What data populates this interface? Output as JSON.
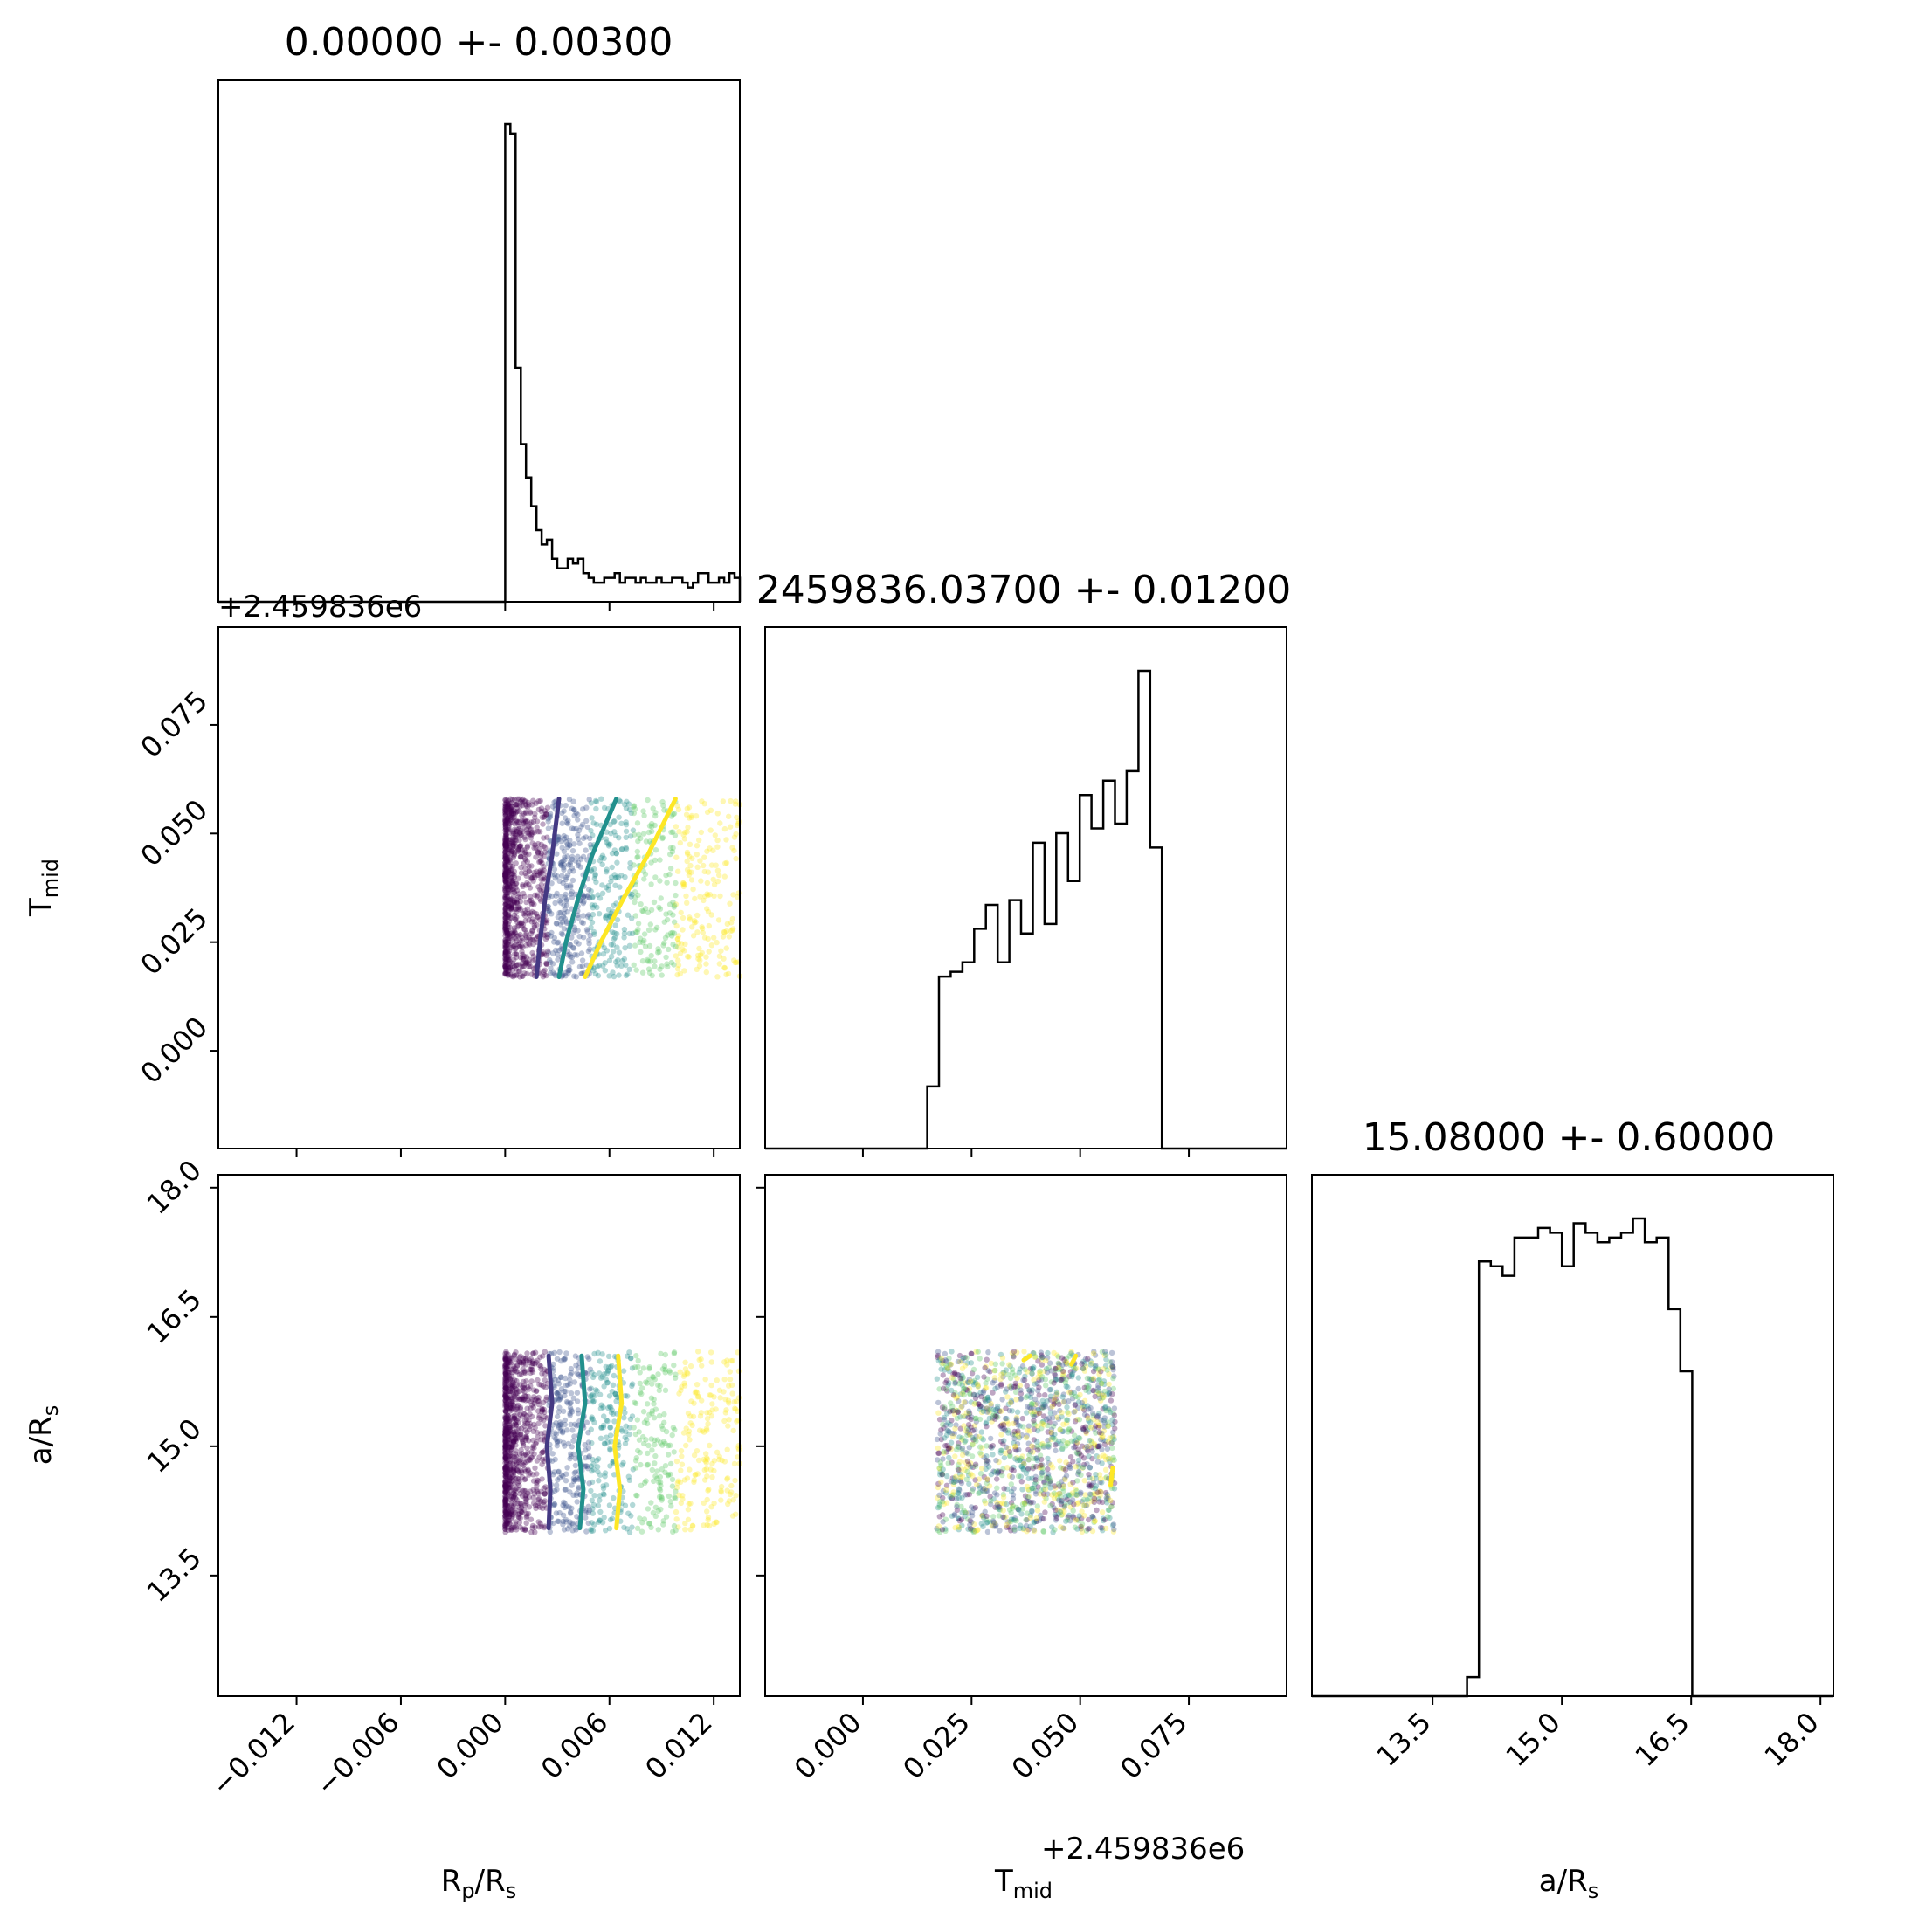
{
  "chart_data": {
    "type": "corner",
    "parameters": [
      {
        "id": "rp",
        "label": "R",
        "sub": "p",
        "label2": "/R",
        "sub2": "s",
        "range": [
          -0.0165,
          0.0135
        ],
        "ticks": [
          -0.012,
          -0.006,
          0.0,
          0.006,
          0.012
        ],
        "tick_labels": [
          "−0.012",
          "−0.006",
          "0.000",
          "0.006",
          "0.012"
        ]
      },
      {
        "id": "tmid",
        "label": "T",
        "sub": "mid",
        "label2": "",
        "sub2": "",
        "range": [
          -0.0225,
          0.0975
        ],
        "ticks": [
          0.0,
          0.025,
          0.05,
          0.075
        ],
        "tick_labels": [
          "0.000",
          "0.025",
          "0.050",
          "0.075"
        ],
        "offset_text": "+2.459836e6"
      },
      {
        "id": "ars",
        "label": "a/R",
        "sub": "s",
        "label2": "",
        "sub2": "",
        "range": [
          12.1,
          18.15
        ],
        "ticks": [
          13.5,
          15.0,
          16.5,
          18.0
        ],
        "tick_labels": [
          "13.5",
          "15.0",
          "16.5",
          "18.0"
        ]
      }
    ],
    "titles": [
      "0.00000 +- 0.00300",
      "2459836.03700 +- 0.01200",
      "15.08000 +- 0.60000"
    ],
    "top_offset_text": "+2.459836e6",
    "histograms": [
      {
        "bin_start": -0.0,
        "bin_width": 0.0003,
        "values": [
          1.0,
          0.98,
          0.49,
          0.33,
          0.26,
          0.2,
          0.15,
          0.12,
          0.13,
          0.09,
          0.07,
          0.07,
          0.09,
          0.08,
          0.09,
          0.06,
          0.05,
          0.04,
          0.04,
          0.05,
          0.05,
          0.06,
          0.04,
          0.05,
          0.05,
          0.04,
          0.05,
          0.04,
          0.04,
          0.05,
          0.04,
          0.04,
          0.05,
          0.05,
          0.04,
          0.03,
          0.04,
          0.06,
          0.06,
          0.04,
          0.04,
          0.05,
          0.04,
          0.06,
          0.05
        ]
      },
      {
        "bin_start": 0.0148,
        "bin_width": 0.0027,
        "values": [
          0.13,
          0.36,
          0.37,
          0.39,
          0.46,
          0.51,
          0.39,
          0.52,
          0.45,
          0.64,
          0.47,
          0.66,
          0.56,
          0.74,
          0.67,
          0.77,
          0.68,
          0.79,
          1.0,
          0.63
        ]
      },
      {
        "bin_start": 13.9,
        "bin_width": 0.1375,
        "values": [
          0.04,
          0.91,
          0.9,
          0.88,
          0.96,
          0.96,
          0.98,
          0.97,
          0.9,
          0.99,
          0.97,
          0.95,
          0.96,
          0.97,
          1.0,
          0.95,
          0.96,
          0.81,
          0.68
        ]
      }
    ],
    "scatter": [
      {
        "row": 1,
        "col": 0,
        "x_range": [
          0.0,
          0.0135
        ],
        "y_range": [
          0.017,
          0.058
        ],
        "density": "x_concentrated_low",
        "contours": [
          {
            "color": "#443983",
            "points": [
              [
                0.0018,
                0.017
              ],
              [
                0.002,
                0.025
              ],
              [
                0.0023,
                0.035
              ],
              [
                0.0027,
                0.045
              ],
              [
                0.0031,
                0.058
              ]
            ]
          },
          {
            "color": "#21908d",
            "points": [
              [
                0.0031,
                0.017
              ],
              [
                0.0035,
                0.025
              ],
              [
                0.0042,
                0.035
              ],
              [
                0.005,
                0.045
              ],
              [
                0.0064,
                0.058
              ]
            ]
          },
          {
            "color": "#fde725",
            "points": [
              [
                0.0046,
                0.017
              ],
              [
                0.0055,
                0.025
              ],
              [
                0.0068,
                0.035
              ],
              [
                0.0082,
                0.045
              ],
              [
                0.0098,
                0.058
              ]
            ]
          }
        ]
      },
      {
        "row": 2,
        "col": 0,
        "x_range": [
          0.0,
          0.0135
        ],
        "y_range": [
          14.0,
          16.1
        ],
        "density": "x_concentrated_low",
        "contours": [
          {
            "color": "#443983",
            "points": [
              [
                0.0025,
                14.05
              ],
              [
                0.0026,
                14.5
              ],
              [
                0.0024,
                15.0
              ],
              [
                0.0027,
                15.5
              ],
              [
                0.0025,
                16.05
              ]
            ]
          },
          {
            "color": "#21908d",
            "points": [
              [
                0.0043,
                14.05
              ],
              [
                0.0045,
                14.5
              ],
              [
                0.0042,
                15.0
              ],
              [
                0.0046,
                15.5
              ],
              [
                0.0044,
                16.05
              ]
            ]
          },
          {
            "color": "#fde725",
            "points": [
              [
                0.0064,
                14.05
              ],
              [
                0.0066,
                14.5
              ],
              [
                0.0063,
                15.0
              ],
              [
                0.0067,
                15.5
              ],
              [
                0.0065,
                16.05
              ]
            ]
          }
        ]
      },
      {
        "row": 2,
        "col": 1,
        "x_range": [
          0.017,
          0.058
        ],
        "y_range": [
          14.0,
          16.1
        ],
        "density": "uniform",
        "contours": [
          {
            "color": "#fde725",
            "points": [
              [
                0.037,
                16.0
              ],
              [
                0.0385,
                16.05
              ]
            ]
          },
          {
            "color": "#fde725",
            "points": [
              [
                0.048,
                15.95
              ],
              [
                0.049,
                16.05
              ]
            ]
          },
          {
            "color": "#fde725",
            "points": [
              [
                0.057,
                14.55
              ],
              [
                0.0575,
                14.75
              ]
            ]
          }
        ]
      }
    ]
  }
}
